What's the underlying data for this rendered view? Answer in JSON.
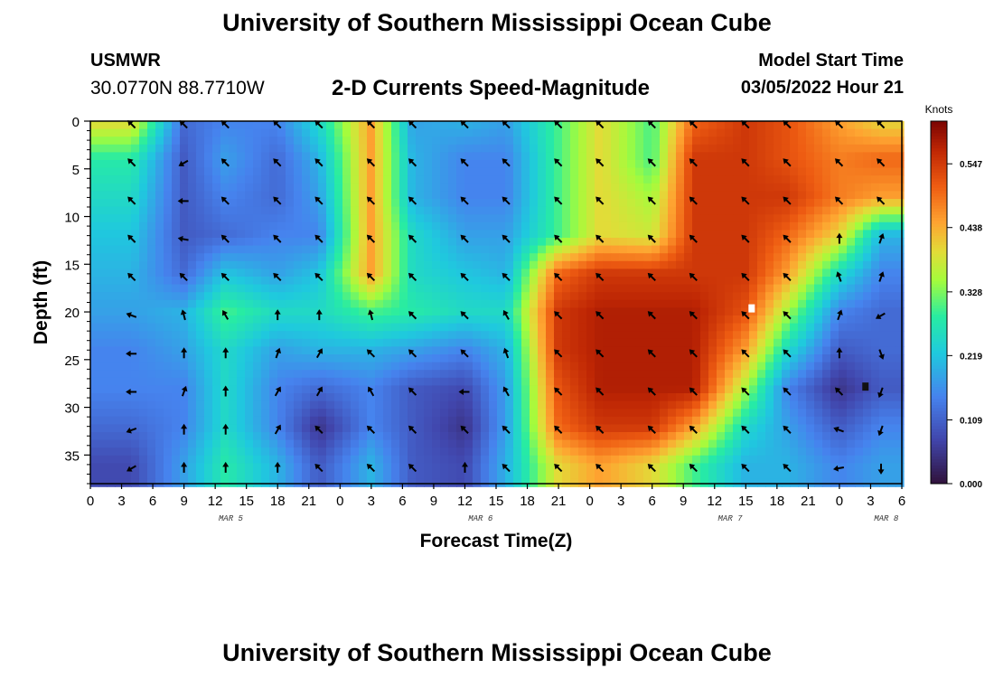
{
  "header": {
    "title": "University of Southern Mississippi Ocean Cube",
    "station": "USMWR",
    "coordinates": "30.0770N  88.7710W",
    "chart_title": "2-D Currents Speed-Magnitude",
    "model_start_label": "Model Start Time",
    "model_start_time": "03/05/2022 Hour 21"
  },
  "footer": {
    "title": "University of Southern Mississippi Ocean Cube"
  },
  "chart_data": {
    "type": "heatmap",
    "title": "2-D Currents Speed-Magnitude",
    "xlabel": "Forecast Time(Z)",
    "ylabel": "Depth (ft)",
    "x_tick_labels": [
      "0",
      "3",
      "6",
      "9",
      "12",
      "15",
      "18",
      "21",
      "0",
      "3",
      "6",
      "9",
      "12",
      "15",
      "18",
      "21",
      "0",
      "3",
      "6",
      "9",
      "12",
      "15",
      "18",
      "21",
      "0",
      "3",
      "6"
    ],
    "date_labels": [
      {
        "label": "MAR 5",
        "tick_index": 4.5
      },
      {
        "label": "MAR 6",
        "tick_index": 12.5
      },
      {
        "label": "MAR 7",
        "tick_index": 20.5
      },
      {
        "label": "MAR 8",
        "tick_index": 25.5
      }
    ],
    "y_ticks": [
      0,
      5,
      10,
      15,
      20,
      25,
      30,
      35
    ],
    "ylim": [
      0,
      38
    ],
    "xlim_hours": [
      0,
      78
    ],
    "colorbar": {
      "title": "Knots",
      "ticks": [
        "0.000",
        "0.109",
        "0.219",
        "0.328",
        "0.438",
        "0.547"
      ],
      "range": [
        0,
        0.62
      ]
    },
    "time_hours": [
      4,
      9,
      13,
      18,
      22,
      27,
      31,
      36,
      40,
      45,
      49,
      54,
      58,
      63,
      67,
      72,
      76
    ],
    "depths_ft": [
      0,
      4,
      8,
      12,
      16,
      20,
      24,
      28,
      32,
      36
    ],
    "speed_knots": [
      [
        0.4,
        0.12,
        0.15,
        0.15,
        0.25,
        0.45,
        0.18,
        0.2,
        0.18,
        0.3,
        0.4,
        0.3,
        0.5,
        0.55,
        0.52,
        0.45,
        0.4
      ],
      [
        0.28,
        0.1,
        0.18,
        0.12,
        0.2,
        0.45,
        0.2,
        0.15,
        0.15,
        0.3,
        0.4,
        0.3,
        0.55,
        0.55,
        0.52,
        0.48,
        0.5
      ],
      [
        0.25,
        0.1,
        0.15,
        0.12,
        0.18,
        0.45,
        0.2,
        0.15,
        0.15,
        0.3,
        0.4,
        0.35,
        0.55,
        0.55,
        0.55,
        0.48,
        0.45
      ],
      [
        0.22,
        0.1,
        0.12,
        0.15,
        0.15,
        0.45,
        0.25,
        0.18,
        0.18,
        0.3,
        0.4,
        0.38,
        0.55,
        0.55,
        0.5,
        0.4,
        0.2
      ],
      [
        0.2,
        0.12,
        0.22,
        0.18,
        0.22,
        0.45,
        0.25,
        0.22,
        0.2,
        0.5,
        0.55,
        0.55,
        0.55,
        0.55,
        0.45,
        0.25,
        0.15
      ],
      [
        0.18,
        0.2,
        0.3,
        0.25,
        0.25,
        0.3,
        0.28,
        0.25,
        0.25,
        0.55,
        0.58,
        0.58,
        0.58,
        0.52,
        0.35,
        0.15,
        0.12
      ],
      [
        0.15,
        0.18,
        0.25,
        0.18,
        0.2,
        0.2,
        0.18,
        0.15,
        0.2,
        0.55,
        0.58,
        0.58,
        0.58,
        0.45,
        0.25,
        0.1,
        0.12
      ],
      [
        0.15,
        0.15,
        0.25,
        0.15,
        0.12,
        0.15,
        0.1,
        0.08,
        0.18,
        0.52,
        0.58,
        0.58,
        0.58,
        0.35,
        0.15,
        0.05,
        0.1
      ],
      [
        0.12,
        0.15,
        0.25,
        0.15,
        0.05,
        0.15,
        0.1,
        0.05,
        0.18,
        0.5,
        0.55,
        0.55,
        0.45,
        0.25,
        0.18,
        0.1,
        0.15
      ],
      [
        0.08,
        0.18,
        0.28,
        0.2,
        0.1,
        0.2,
        0.1,
        0.08,
        0.2,
        0.4,
        0.45,
        0.4,
        0.3,
        0.2,
        0.2,
        0.15,
        0.18
      ]
    ],
    "arrow_direction_deg": [
      [
        135,
        135,
        135,
        135,
        135,
        135,
        135,
        135,
        135,
        135,
        135,
        135,
        135,
        135,
        135,
        135,
        135
      ],
      [
        135,
        60,
        135,
        135,
        135,
        135,
        135,
        135,
        135,
        135,
        135,
        135,
        135,
        135,
        135,
        135,
        135
      ],
      [
        135,
        90,
        135,
        135,
        135,
        135,
        135,
        135,
        135,
        135,
        135,
        135,
        135,
        135,
        135,
        135,
        135
      ],
      [
        135,
        100,
        135,
        135,
        135,
        135,
        135,
        135,
        135,
        135,
        135,
        135,
        135,
        135,
        135,
        180,
        200
      ],
      [
        135,
        135,
        135,
        135,
        135,
        135,
        135,
        135,
        135,
        135,
        135,
        135,
        135,
        135,
        135,
        160,
        200
      ],
      [
        110,
        165,
        150,
        180,
        180,
        165,
        135,
        135,
        150,
        135,
        135,
        135,
        135,
        135,
        135,
        200,
        60
      ],
      [
        90,
        180,
        180,
        200,
        210,
        135,
        135,
        135,
        160,
        135,
        135,
        135,
        135,
        135,
        135,
        180,
        340
      ],
      [
        90,
        200,
        180,
        210,
        210,
        150,
        135,
        90,
        150,
        135,
        135,
        135,
        135,
        135,
        135,
        135,
        20
      ],
      [
        70,
        180,
        180,
        210,
        135,
        135,
        135,
        135,
        135,
        135,
        135,
        135,
        135,
        135,
        135,
        110,
        20
      ],
      [
        60,
        180,
        180,
        180,
        135,
        135,
        135,
        180,
        135,
        135,
        135,
        135,
        135,
        135,
        135,
        80,
        0
      ]
    ]
  }
}
